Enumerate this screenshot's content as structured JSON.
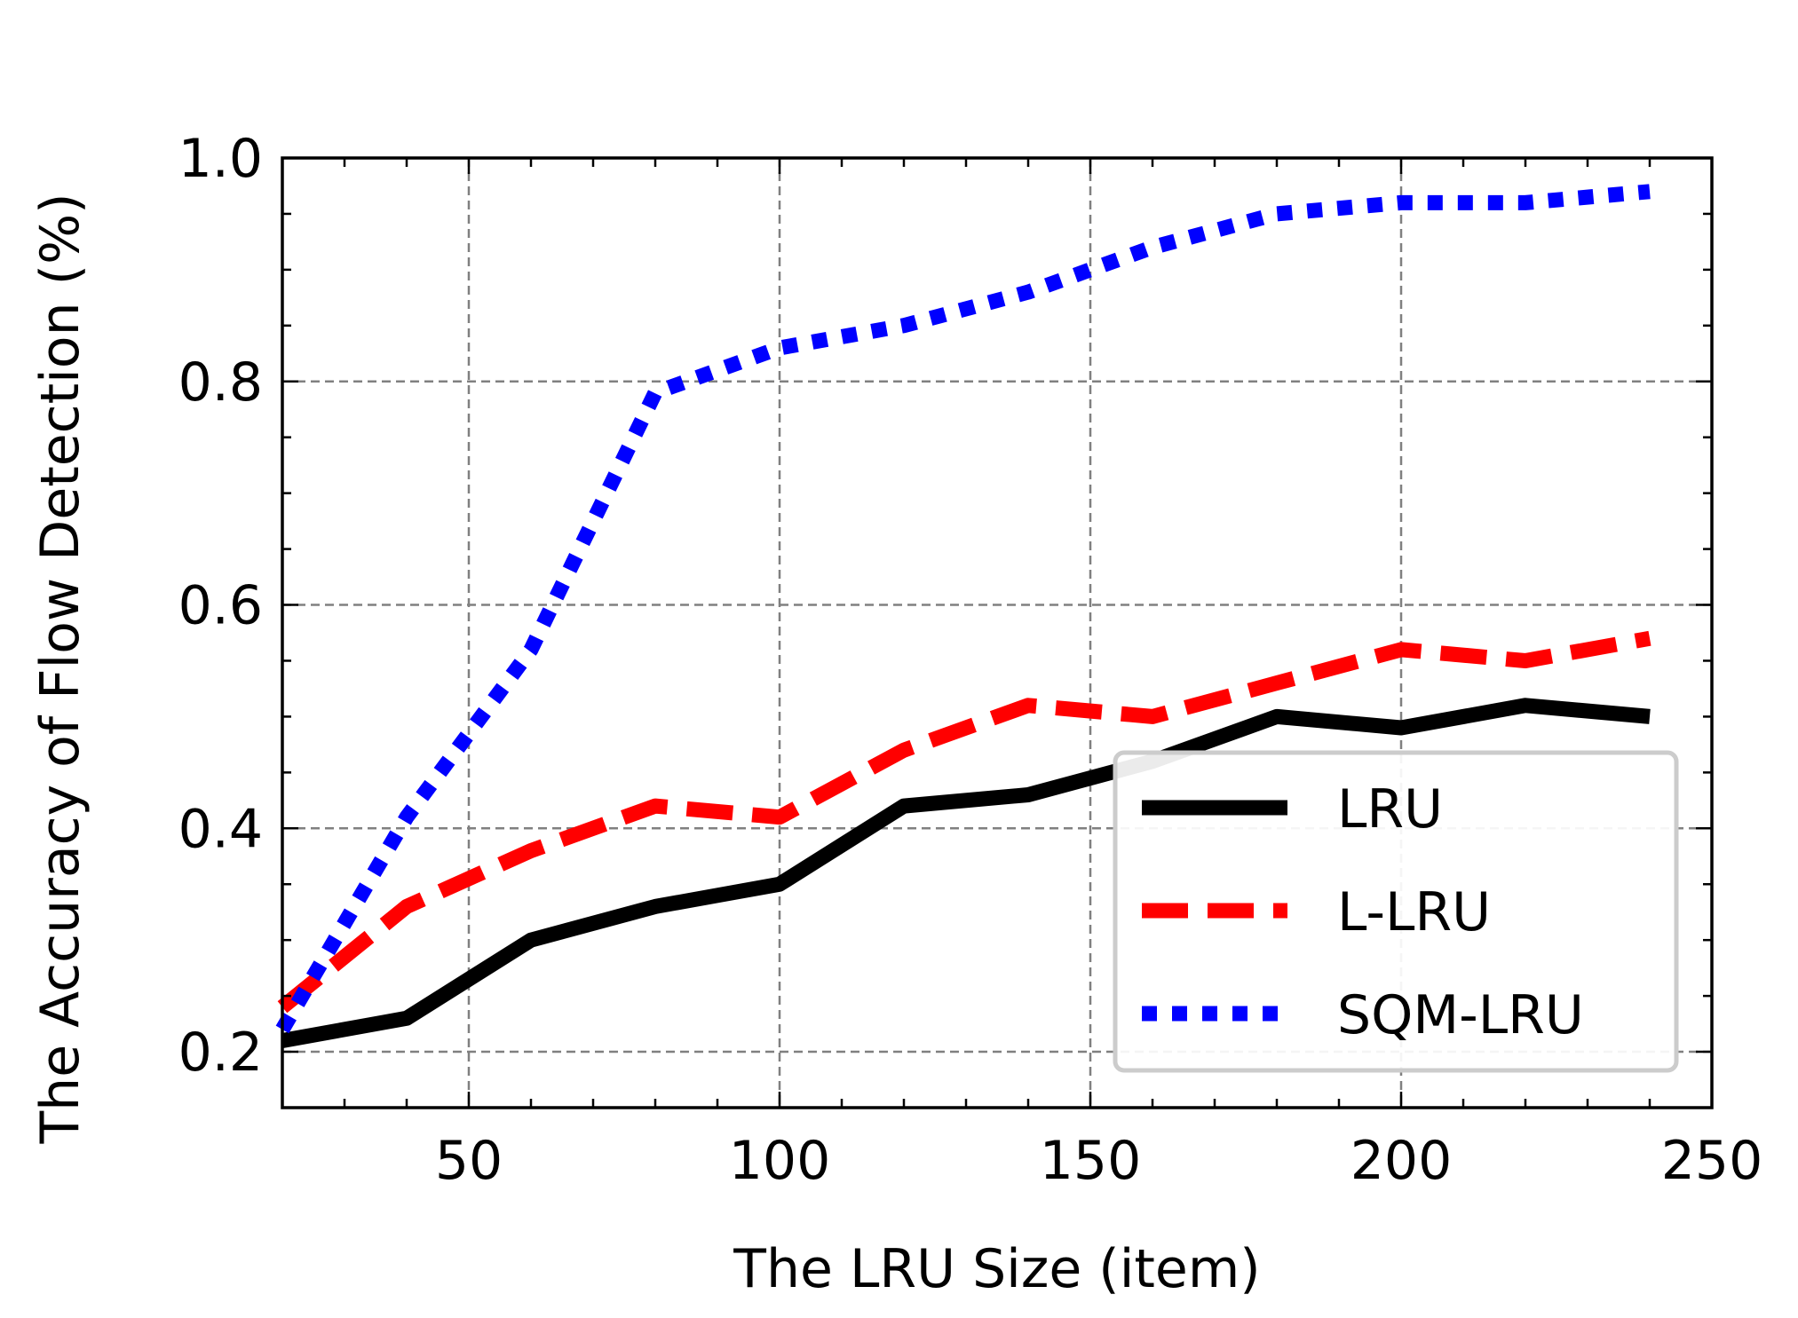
{
  "chart_data": {
    "type": "line",
    "title": "",
    "xlabel": "The LRU Size (item)",
    "ylabel": "The Accuracy of Flow Detection (%)",
    "xlim": [
      20,
      250
    ],
    "ylim": [
      0.15,
      1.0
    ],
    "x_ticks": [
      50,
      100,
      150,
      200,
      250
    ],
    "x_tick_labels": [
      "50",
      "100",
      "150",
      "200",
      "250"
    ],
    "y_ticks": [
      0.2,
      0.4,
      0.6,
      0.8,
      1.0
    ],
    "y_tick_labels": [
      "0.2",
      "0.4",
      "0.6",
      "0.8",
      "1.0"
    ],
    "grid": true,
    "legend_position": "lower-right",
    "x": [
      20,
      40,
      60,
      80,
      100,
      120,
      140,
      160,
      180,
      200,
      220,
      240
    ],
    "series": [
      {
        "name": "LRU",
        "color": "#000000",
        "style": "solid",
        "values": [
          0.21,
          0.23,
          0.3,
          0.33,
          0.35,
          0.42,
          0.43,
          0.46,
          0.5,
          0.49,
          0.51,
          0.5
        ]
      },
      {
        "name": "L-LRU",
        "color": "#ff0000",
        "style": "dashed",
        "values": [
          0.24,
          0.33,
          0.38,
          0.42,
          0.41,
          0.47,
          0.51,
          0.5,
          0.53,
          0.56,
          0.55,
          0.57
        ]
      },
      {
        "name": "SQM-LRU",
        "color": "#0000ff",
        "style": "dotted",
        "values": [
          0.22,
          0.41,
          0.56,
          0.79,
          0.83,
          0.85,
          0.88,
          0.92,
          0.95,
          0.96,
          0.96,
          0.97
        ]
      }
    ]
  }
}
